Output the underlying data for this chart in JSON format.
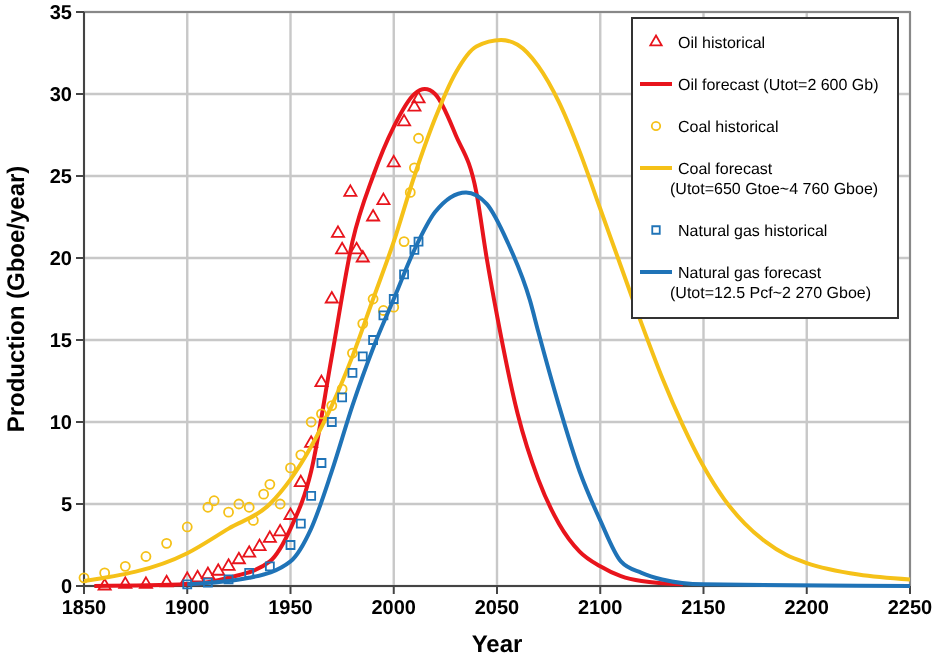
{
  "chart_data": {
    "type": "line",
    "xlabel": "Year",
    "ylabel": "Production (Gboe/year)",
    "xlim": [
      1850,
      2250
    ],
    "ylim": [
      0,
      35
    ],
    "xticks": [
      1850,
      1900,
      1950,
      2000,
      2050,
      2100,
      2150,
      2200,
      2250
    ],
    "yticks": [
      0,
      5,
      10,
      15,
      20,
      25,
      30,
      35
    ],
    "grid": true,
    "legend": "top right",
    "series": [
      {
        "name": "Oil historical",
        "type": "scatter",
        "marker": "triangle",
        "color": "#e8141c",
        "x": [
          1860,
          1870,
          1880,
          1890,
          1900,
          1905,
          1910,
          1915,
          1920,
          1925,
          1930,
          1935,
          1940,
          1945,
          1950,
          1955,
          1960,
          1965,
          1970,
          1973,
          1975,
          1979,
          1982,
          1985,
          1990,
          1995,
          2000,
          2005,
          2010,
          2012
        ],
        "values": [
          0,
          0.1,
          0.1,
          0.2,
          0.4,
          0.5,
          0.7,
          0.9,
          1.2,
          1.6,
          2,
          2.4,
          2.9,
          3.3,
          4.3,
          6.3,
          8.7,
          12.4,
          17.5,
          21.5,
          20.5,
          24,
          20.5,
          20,
          22.5,
          23.5,
          25.8,
          28.3,
          29.2,
          29.7
        ]
      },
      {
        "name": "Oil forecast (Utot=2 600 Gb)",
        "color": "#e8141c",
        "x": [
          1855,
          1900,
          1920,
          1940,
          1950,
          1960,
          1970,
          1980,
          1990,
          2000,
          2010,
          2015,
          2020,
          2030,
          2040,
          2045,
          2050,
          2060,
          2070,
          2080,
          2090,
          2100,
          2110,
          2120,
          2140
        ],
        "values": [
          0,
          0.1,
          0.5,
          1.5,
          3.5,
          7,
          14,
          21,
          25,
          28,
          30,
          30.3,
          30,
          27.5,
          24,
          20,
          16.5,
          10.5,
          6.5,
          3.8,
          2.1,
          1.2,
          0.6,
          0.3,
          0.1
        ]
      },
      {
        "name": "Coal historical",
        "type": "scatter",
        "marker": "circle",
        "color": "#f5c118",
        "x": [
          1850,
          1860,
          1870,
          1880,
          1890,
          1900,
          1910,
          1913,
          1920,
          1925,
          1930,
          1932,
          1937,
          1940,
          1945,
          1950,
          1955,
          1960,
          1965,
          1970,
          1975,
          1980,
          1985,
          1990,
          1995,
          2000,
          2005,
          2008,
          2010,
          2012
        ],
        "values": [
          0.5,
          0.8,
          1.2,
          1.8,
          2.6,
          3.6,
          4.8,
          5.2,
          4.5,
          5,
          4.8,
          4,
          5.6,
          6.2,
          5,
          7.2,
          8,
          10,
          10.5,
          11,
          12,
          14.2,
          16,
          17.5,
          16.8,
          17,
          21,
          24,
          25.5,
          27.3
        ]
      },
      {
        "name": "Coal forecast\n(Utot=650 Gtoe~4 760 Gboe)",
        "color": "#f5c118",
        "x": [
          1850,
          1900,
          1920,
          1940,
          1950,
          1960,
          1970,
          1980,
          1990,
          2000,
          2010,
          2020,
          2030,
          2040,
          2052,
          2060,
          2070,
          2080,
          2090,
          2100,
          2110,
          2120,
          2130,
          2140,
          2150,
          2160,
          2170,
          2180,
          2190,
          2200,
          2225,
          2250
        ],
        "values": [
          0.3,
          2,
          3.5,
          5,
          6.5,
          8.5,
          11,
          14,
          17.5,
          21,
          25,
          28.5,
          31.3,
          32.9,
          33.3,
          33,
          31.7,
          29.5,
          26.5,
          23,
          19.5,
          16,
          12.7,
          9.8,
          7.3,
          5.3,
          3.8,
          2.7,
          1.9,
          1.4,
          0.7,
          0.4
        ]
      },
      {
        "name": "Natural gas historical",
        "type": "scatter",
        "marker": "square",
        "color": "#1f73b7",
        "x": [
          1900,
          1910,
          1920,
          1930,
          1940,
          1950,
          1955,
          1960,
          1965,
          1970,
          1975,
          1980,
          1985,
          1990,
          1995,
          2000,
          2005,
          2010,
          2012
        ],
        "values": [
          0.1,
          0.2,
          0.4,
          0.8,
          1.2,
          2.5,
          3.8,
          5.5,
          7.5,
          10,
          11.5,
          13,
          14,
          15,
          16.5,
          17.5,
          19,
          20.5,
          21
        ]
      },
      {
        "name": "Natural gas forecast\n(Utot=12.5 Pcf~2 270 Gboe)",
        "color": "#1f73b7",
        "x": [
          1900,
          1930,
          1950,
          1960,
          1970,
          1980,
          1990,
          2000,
          2010,
          2020,
          2035,
          2045,
          2055,
          2066,
          2070,
          2080,
          2090,
          2100,
          2110,
          2120,
          2130,
          2150,
          2250
        ],
        "values": [
          0.1,
          0.5,
          1.5,
          3.5,
          7,
          11,
          14.5,
          17.5,
          20.5,
          22.8,
          24,
          23.3,
          21,
          17.4,
          15.5,
          11,
          7,
          4,
          1.5,
          0.8,
          0.4,
          0.1,
          0
        ]
      }
    ]
  }
}
